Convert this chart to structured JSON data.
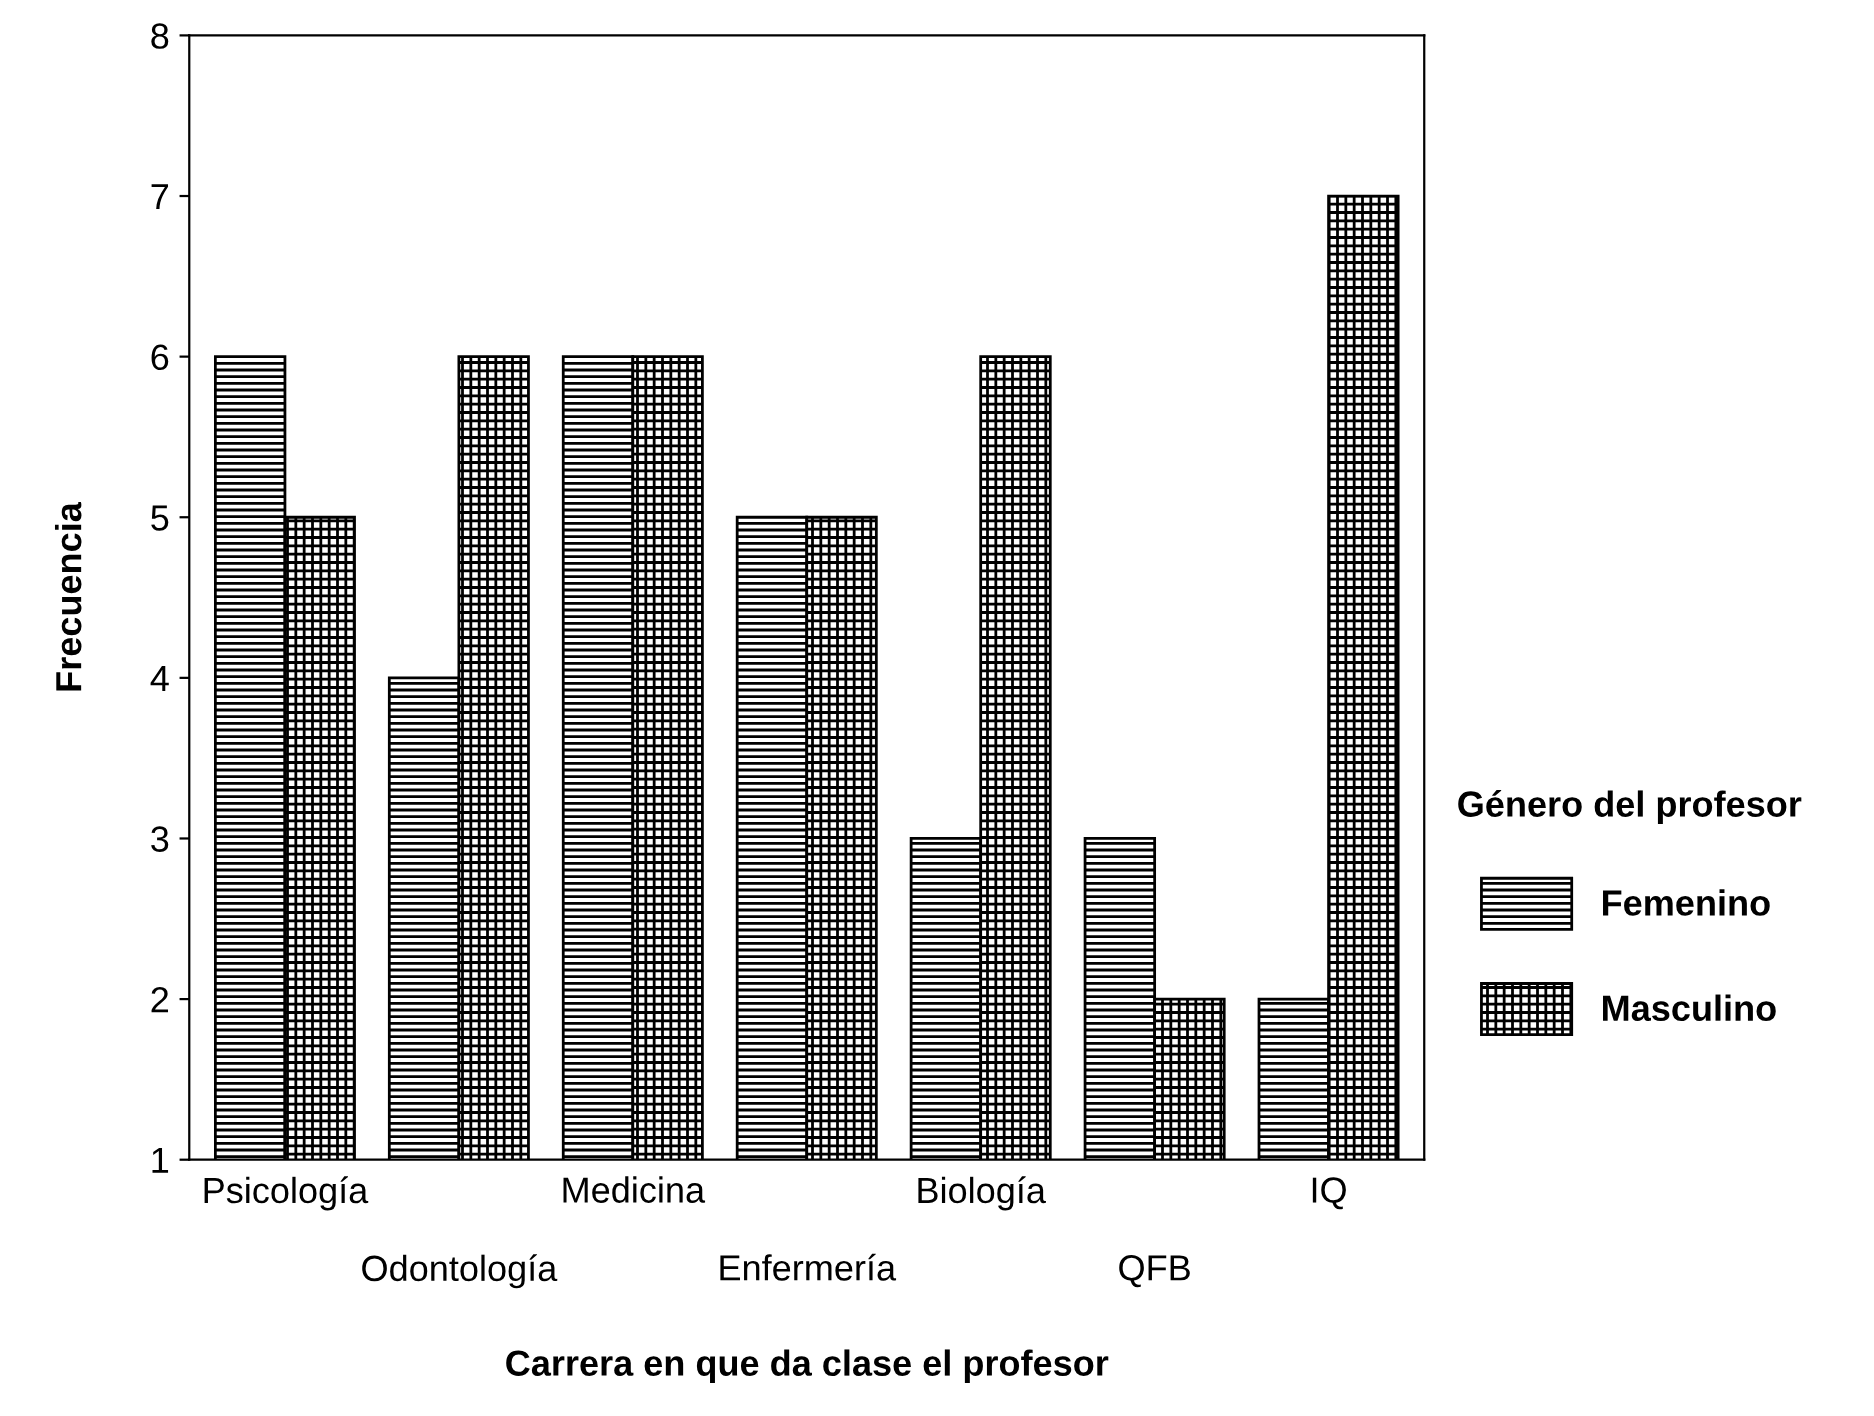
{
  "chart_data": {
    "type": "bar",
    "xlabel": "Carrera en que da clase el profesor",
    "ylabel": "Frecuencia",
    "legend_title": "Género del profesor",
    "categories": [
      "Psicología",
      "Odontología",
      "Medicina",
      "Enfermería",
      "Biología",
      "QFB",
      "IQ"
    ],
    "series": [
      {
        "name": "Femenino",
        "color": "#000000",
        "values": [
          6,
          4,
          6,
          5,
          3,
          3,
          2
        ]
      },
      {
        "name": "Masculino",
        "color": "#000000",
        "values": [
          5,
          6,
          6,
          5,
          6,
          2,
          7
        ]
      }
    ],
    "ylim": [
      1,
      8
    ],
    "yticks": [
      1,
      2,
      3,
      4,
      5,
      6,
      7,
      8
    ],
    "grid": false,
    "legend": "right"
  }
}
